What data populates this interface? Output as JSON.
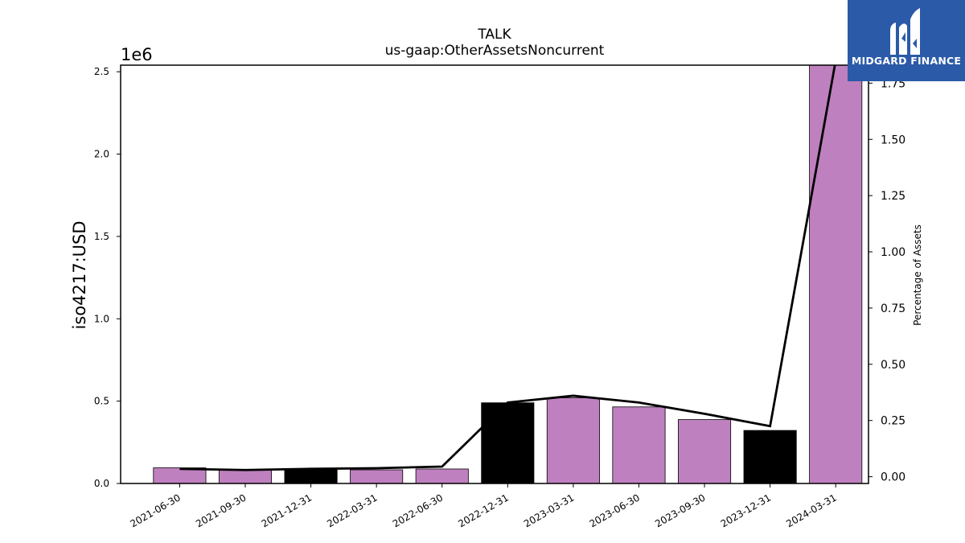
{
  "chart_data": {
    "type": "bar",
    "title": "TALK",
    "subtitle": "us-gaap:OtherAssetsNoncurrent",
    "ylabel": "iso4217:USD",
    "y_offset_label": "1e6",
    "y2label": "Percentage of Assets",
    "categories": [
      "2021-06-30",
      "2021-09-30",
      "2021-12-31",
      "2022-03-31",
      "2022-06-30",
      "2022-12-31",
      "2023-03-31",
      "2023-06-30",
      "2023-09-30",
      "2023-12-31",
      "2024-03-31"
    ],
    "values": [
      95000,
      85000,
      85000,
      83000,
      88000,
      490000,
      520000,
      465000,
      388000,
      322000,
      2540000
    ],
    "bar_colors": [
      "#bf80bf",
      "#bf80bf",
      "#000000",
      "#bf80bf",
      "#bf80bf",
      "#000000",
      "#bf80bf",
      "#bf80bf",
      "#bf80bf",
      "#000000",
      "#bf80bf"
    ],
    "percentage": [
      0.035,
      0.03,
      0.035,
      0.038,
      0.045,
      0.33,
      0.36,
      0.33,
      0.28,
      0.225,
      1.85
    ],
    "ylim": [
      0,
      2540000
    ],
    "y2lim": [
      -0.03,
      1.83
    ],
    "yticks": [
      0,
      500000,
      1000000,
      1500000,
      2000000,
      2500000
    ],
    "ytick_labels": [
      "0.0",
      "0.5",
      "1.0",
      "1.5",
      "2.0",
      "2.5"
    ],
    "y2ticks": [
      0,
      0.25,
      0.5,
      0.75,
      1.0,
      1.25,
      1.5,
      1.75
    ],
    "y2tick_labels": [
      "0.00",
      "0.25",
      "0.50",
      "0.75",
      "1.00",
      "1.25",
      "1.50",
      "1.75"
    ],
    "line_color": "#000000",
    "grid": false
  },
  "logo": {
    "text": "MIDGARD FINANCE",
    "background": "#2b5aa8"
  }
}
